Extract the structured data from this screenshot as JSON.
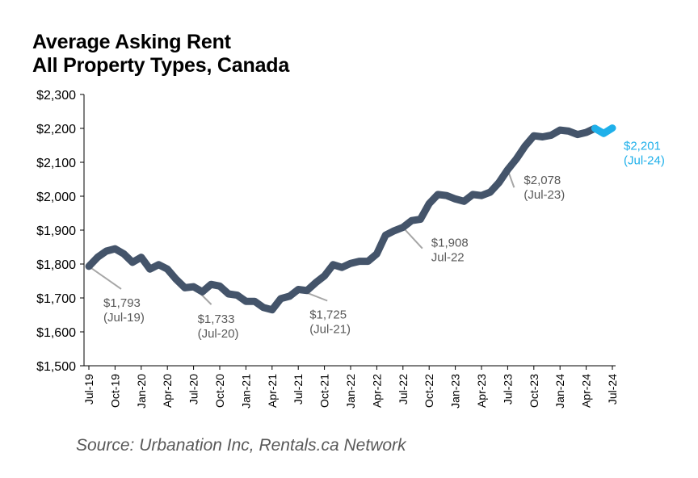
{
  "chart_data": {
    "type": "line",
    "title_lines": [
      "Average Asking Rent",
      "All Property Types, Canada"
    ],
    "source": "Source: Urbanation Inc, Rentals.ca Network",
    "y_ticks": [
      "$2,300",
      "$2,200",
      "$2,100",
      "$2,000",
      "$1,900",
      "$1,800",
      "$1,700",
      "$1,600",
      "$1,500"
    ],
    "ylim": [
      1500,
      2300
    ],
    "x_ticks": [
      "Jul-19",
      "Oct-19",
      "Jan-20",
      "Apr-20",
      "Jul-20",
      "Oct-20",
      "Jan-21",
      "Apr-21",
      "Jul-21",
      "Oct-21",
      "Jan-22",
      "Apr-22",
      "Jul-22",
      "Oct-22",
      "Jan-23",
      "Apr-23",
      "Jul-23",
      "Oct-23",
      "Jan-24",
      "Apr-24",
      "Jul-24"
    ],
    "x": [
      "Jul-19",
      "Aug-19",
      "Sep-19",
      "Oct-19",
      "Nov-19",
      "Dec-19",
      "Jan-20",
      "Feb-20",
      "Mar-20",
      "Apr-20",
      "May-20",
      "Jun-20",
      "Jul-20",
      "Aug-20",
      "Sep-20",
      "Oct-20",
      "Nov-20",
      "Dec-20",
      "Jan-21",
      "Feb-21",
      "Mar-21",
      "Apr-21",
      "May-21",
      "Jun-21",
      "Jul-21",
      "Aug-21",
      "Sep-21",
      "Oct-21",
      "Nov-21",
      "Dec-21",
      "Jan-22",
      "Feb-22",
      "Mar-22",
      "Apr-22",
      "May-22",
      "Jun-22",
      "Jul-22",
      "Aug-22",
      "Sep-22",
      "Oct-22",
      "Nov-22",
      "Dec-22",
      "Jan-23",
      "Feb-23",
      "Mar-23",
      "Apr-23",
      "May-23",
      "Jun-23",
      "Jul-23",
      "Aug-23",
      "Sep-23",
      "Oct-23",
      "Nov-23",
      "Dec-23",
      "Jan-24",
      "Feb-24",
      "Mar-24",
      "Apr-24",
      "May-24",
      "Jun-24",
      "Jul-24"
    ],
    "values": [
      1793,
      1820,
      1838,
      1845,
      1830,
      1805,
      1820,
      1785,
      1798,
      1785,
      1755,
      1730,
      1733,
      1718,
      1740,
      1735,
      1712,
      1708,
      1690,
      1690,
      1672,
      1665,
      1698,
      1705,
      1725,
      1722,
      1745,
      1765,
      1798,
      1790,
      1802,
      1808,
      1808,
      1830,
      1885,
      1898,
      1908,
      1928,
      1932,
      1978,
      2005,
      2002,
      1992,
      1985,
      2005,
      2002,
      2012,
      2040,
      2078,
      2110,
      2148,
      2178,
      2175,
      2180,
      2195,
      2192,
      2182,
      2188,
      2200,
      2185,
      2201
    ],
    "highlight_last_points": 3,
    "annotations": [
      {
        "index": 0,
        "lines": [
          "$1,793",
          "(Jul-19)"
        ]
      },
      {
        "index": 12,
        "lines": [
          "$1,733",
          "(Jul-20)"
        ]
      },
      {
        "index": 24,
        "lines": [
          "$1,725",
          "(Jul-21)"
        ]
      },
      {
        "index": 36,
        "lines": [
          "$1,908",
          "Jul-22"
        ]
      },
      {
        "index": 48,
        "lines": [
          "$2,078",
          "(Jul-23)"
        ]
      },
      {
        "index": 60,
        "lines": [
          "$2,201",
          "(Jul-24)"
        ],
        "highlight": true
      }
    ],
    "colors": {
      "line": "#44546a",
      "highlight": "#1fb0ea",
      "axis": "#000000",
      "annotation": "#595959",
      "leader": "#a6a6a6"
    },
    "grid": false
  }
}
